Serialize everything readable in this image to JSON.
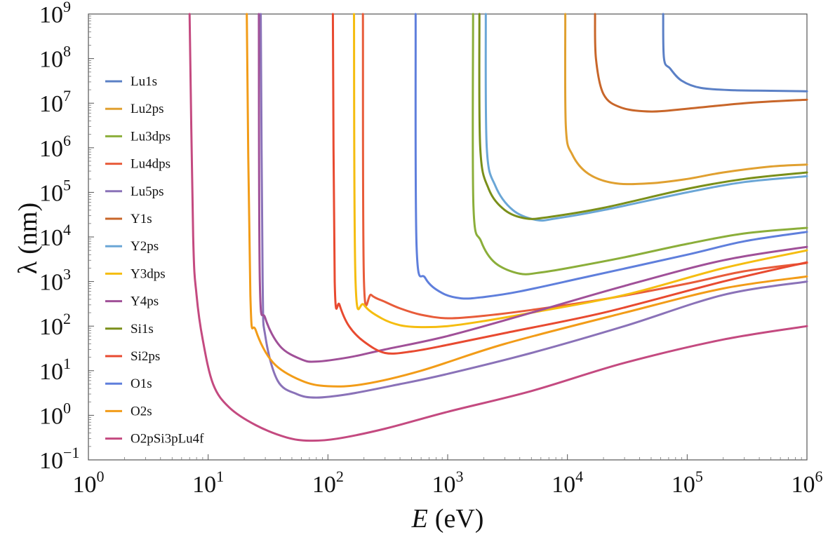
{
  "chart_data": {
    "type": "line",
    "xlabel_var": "E",
    "xlabel_unit": "(eV)",
    "ylabel_var": "λ",
    "ylabel_unit": "(nm)",
    "x_scale": "log",
    "y_scale": "log",
    "xlim": [
      1,
      1000000
    ],
    "ylim": [
      0.1,
      1000000000
    ],
    "x_ticks": [
      {
        "value": 1,
        "base": "10",
        "exp": "0"
      },
      {
        "value": 10,
        "base": "10",
        "exp": "1"
      },
      {
        "value": 100,
        "base": "10",
        "exp": "2"
      },
      {
        "value": 1000,
        "base": "10",
        "exp": "3"
      },
      {
        "value": 10000,
        "base": "10",
        "exp": "4"
      },
      {
        "value": 100000,
        "base": "10",
        "exp": "5"
      },
      {
        "value": 1000000,
        "base": "10",
        "exp": "6"
      }
    ],
    "y_ticks": [
      {
        "value": 0.1,
        "base": "10",
        "exp": "−1"
      },
      {
        "value": 1,
        "base": "10",
        "exp": "0"
      },
      {
        "value": 10,
        "base": "10",
        "exp": "1"
      },
      {
        "value": 100,
        "base": "10",
        "exp": "2"
      },
      {
        "value": 1000,
        "base": "10",
        "exp": "3"
      },
      {
        "value": 10000,
        "base": "10",
        "exp": "4"
      },
      {
        "value": 100000,
        "base": "10",
        "exp": "5"
      },
      {
        "value": 1000000,
        "base": "10",
        "exp": "6"
      },
      {
        "value": 10000000,
        "base": "10",
        "exp": "7"
      },
      {
        "value": 100000000,
        "base": "10",
        "exp": "8"
      },
      {
        "value": 1000000000,
        "base": "10",
        "exp": "9"
      }
    ],
    "grid": false,
    "legend_position": "left",
    "series": [
      {
        "name": "Lu1s",
        "color": "#5b80c6",
        "points": [
          [
            63000,
            1000000000.0
          ],
          [
            64000,
            100000000.0
          ],
          [
            72000,
            60000000.0
          ],
          [
            90000,
            32000000.0
          ],
          [
            130000,
            22000000.0
          ],
          [
            250000,
            19500000.0
          ],
          [
            500000,
            19000000.0
          ],
          [
            1000000,
            18500000.0
          ]
        ]
      },
      {
        "name": "Lu2ps",
        "color": "#e0a030",
        "points": [
          [
            9600,
            1000000000.0
          ],
          [
            9700,
            3000000.0
          ],
          [
            11000,
            700000.0
          ],
          [
            15000,
            260000.0
          ],
          [
            25000,
            160000.0
          ],
          [
            50000,
            160000.0
          ],
          [
            100000,
            200000.0
          ],
          [
            200000,
            280000.0
          ],
          [
            500000,
            380000.0
          ],
          [
            1000000,
            420000.0
          ]
        ]
      },
      {
        "name": "Lu3dps",
        "color": "#8bae3a",
        "points": [
          [
            1630,
            1000000000.0
          ],
          [
            1640,
            50000.0
          ],
          [
            1900,
            8000.0
          ],
          [
            2500,
            2600.0
          ],
          [
            4000,
            1500.0
          ],
          [
            6000,
            1600.0
          ],
          [
            10000,
            2000.0
          ],
          [
            30000,
            3500.0
          ],
          [
            100000,
            7000.0
          ],
          [
            300000,
            12000.0
          ],
          [
            1000000,
            16000.0
          ]
        ]
      },
      {
        "name": "Lu4dps",
        "color": "#e85c3a",
        "points": [
          [
            196,
            1000000000.0
          ],
          [
            200,
            1000.0
          ],
          [
            230,
            500
          ],
          [
            300,
            350
          ],
          [
            400,
            250
          ],
          [
            600,
            180
          ],
          [
            1000,
            150
          ],
          [
            2000,
            170
          ],
          [
            5000,
            230
          ],
          [
            20000,
            400
          ],
          [
            100000,
            900
          ],
          [
            300000,
            1700
          ],
          [
            1000000,
            2600
          ]
        ]
      },
      {
        "name": "Lu5ps",
        "color": "#8a72b8",
        "points": [
          [
            27.5,
            1000000000.0
          ],
          [
            28.5,
            1000.0
          ],
          [
            30,
            60
          ],
          [
            38,
            6
          ],
          [
            55,
            3
          ],
          [
            80,
            2.5
          ],
          [
            150,
            3
          ],
          [
            400,
            5
          ],
          [
            1000,
            8.5
          ],
          [
            5000,
            25
          ],
          [
            30000,
            100
          ],
          [
            200000,
            500
          ],
          [
            1000000,
            1000.0
          ]
        ]
      },
      {
        "name": "Y1s",
        "color": "#c8662a",
        "points": [
          [
            17000,
            1000000000.0
          ],
          [
            17300,
            100000000.0
          ],
          [
            20000,
            16000000.0
          ],
          [
            28000,
            8000000.0
          ],
          [
            50000,
            6500000.0
          ],
          [
            100000,
            7500000.0
          ],
          [
            300000,
            10000000.0
          ],
          [
            1000000,
            12000000.0
          ]
        ]
      },
      {
        "name": "Y2ps",
        "color": "#6aa6d6",
        "points": [
          [
            2080,
            1000000000.0
          ],
          [
            2120,
            1000000.0
          ],
          [
            2500,
            140000.0
          ],
          [
            3500,
            40000.0
          ],
          [
            5500,
            24000.0
          ],
          [
            8000,
            26000.0
          ],
          [
            20000,
            40000.0
          ],
          [
            100000,
            100000.0
          ],
          [
            300000,
            170000.0
          ],
          [
            1000000,
            230000.0
          ]
        ]
      },
      {
        "name": "Y3dps",
        "color": "#f5bd10",
        "points": [
          [
            165,
            1000000000.0
          ],
          [
            170,
            1000.0
          ],
          [
            200,
            300
          ],
          [
            280,
            150
          ],
          [
            400,
            105
          ],
          [
            600,
            95
          ],
          [
            1000,
            100
          ],
          [
            2000,
            130
          ],
          [
            5000,
            200
          ],
          [
            30000,
            500
          ],
          [
            200000,
            2000
          ],
          [
            1000000,
            5000
          ]
        ]
      },
      {
        "name": "Y4ps",
        "color": "#a05098",
        "points": [
          [
            26.5,
            1000000000.0
          ],
          [
            27,
            1000
          ],
          [
            30,
            150
          ],
          [
            40,
            35
          ],
          [
            60,
            18
          ],
          [
            80,
            16
          ],
          [
            150,
            20
          ],
          [
            300,
            30
          ],
          [
            1000,
            60
          ],
          [
            5000,
            200
          ],
          [
            30000,
            800
          ],
          [
            200000,
            3000
          ],
          [
            1000000,
            6000
          ]
        ]
      },
      {
        "name": "Si1s",
        "color": "#7a8f1a",
        "points": [
          [
            1840,
            1000000000.0
          ],
          [
            1870,
            1000000.0
          ],
          [
            2200,
            120000.0
          ],
          [
            3000,
            40000.0
          ],
          [
            4500,
            26000.0
          ],
          [
            7000,
            28000.0
          ],
          [
            20000,
            45000.0
          ],
          [
            100000,
            120000.0
          ],
          [
            300000,
            200000.0
          ],
          [
            1000000,
            280000.0
          ]
        ]
      },
      {
        "name": "Si2ps",
        "color": "#e84a30",
        "points": [
          [
            110,
            1000000000.0
          ],
          [
            114,
            1000.0
          ],
          [
            125,
            300
          ],
          [
            150,
            100
          ],
          [
            200,
            45
          ],
          [
            300,
            25
          ],
          [
            500,
            27
          ],
          [
            1000,
            38
          ],
          [
            3000,
            70
          ],
          [
            20000,
            200
          ],
          [
            200000,
            1000
          ],
          [
            1000000,
            2700
          ]
        ]
      },
      {
        "name": "O1s",
        "color": "#5f7fdc",
        "points": [
          [
            540,
            1000000000.0
          ],
          [
            550,
            6000
          ],
          [
            650,
            1200
          ],
          [
            900,
            550
          ],
          [
            1300,
            420
          ],
          [
            2000,
            450
          ],
          [
            4000,
            600
          ],
          [
            15000,
            1300
          ],
          [
            100000,
            4000
          ],
          [
            300000,
            8000
          ],
          [
            1000000,
            13000.0
          ]
        ]
      },
      {
        "name": "O2s",
        "color": "#f29c18",
        "points": [
          [
            21,
            1000000000.0
          ],
          [
            22.5,
            500
          ],
          [
            25,
            80
          ],
          [
            35,
            15
          ],
          [
            60,
            6
          ],
          [
            100,
            4.5
          ],
          [
            200,
            5
          ],
          [
            600,
            10
          ],
          [
            3000,
            40
          ],
          [
            30000,
            200
          ],
          [
            200000,
            700
          ],
          [
            1000000,
            1300
          ]
        ]
      },
      {
        "name": "O2pSi3pLu4f",
        "color": "#c44a80",
        "points": [
          [
            7,
            1000000000.0
          ],
          [
            7.5,
            10000.0
          ],
          [
            8,
            500
          ],
          [
            9,
            50
          ],
          [
            11,
            5
          ],
          [
            15,
            1.5
          ],
          [
            25,
            0.6
          ],
          [
            45,
            0.32
          ],
          [
            70,
            0.27
          ],
          [
            120,
            0.3
          ],
          [
            300,
            0.5
          ],
          [
            1000,
            1.2
          ],
          [
            5000,
            3.5
          ],
          [
            30000,
            15
          ],
          [
            200000,
            50
          ],
          [
            1000000,
            100
          ]
        ]
      }
    ]
  }
}
